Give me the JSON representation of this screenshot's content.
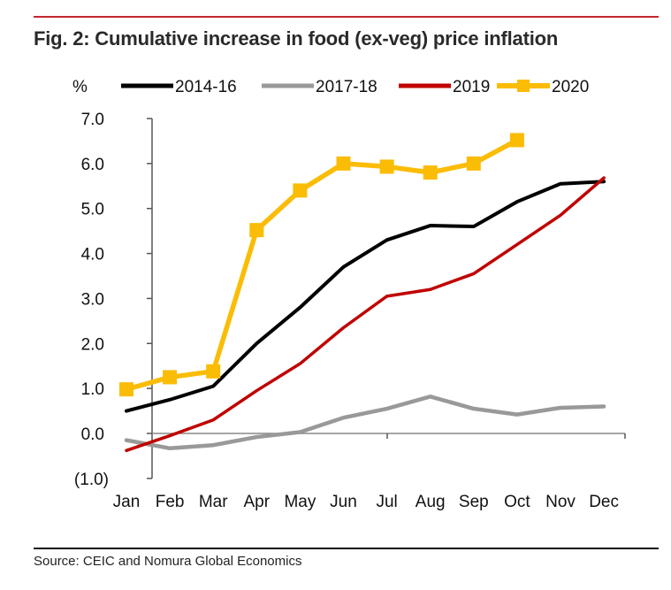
{
  "header": {
    "title": "Fig. 2: Cumulative increase in food (ex-veg) price inflation"
  },
  "footer": {
    "source": "Source: CEIC and Nomura Global Economics"
  },
  "chart_data": {
    "type": "line",
    "title": "Fig. 2: Cumulative increase in food (ex-veg) price inflation",
    "xlabel": "",
    "ylabel": "%",
    "categories": [
      "Jan",
      "Feb",
      "Mar",
      "Apr",
      "May",
      "Jun",
      "Jul",
      "Aug",
      "Sep",
      "Oct",
      "Nov",
      "Dec"
    ],
    "ylim": [
      -1.0,
      7.0
    ],
    "yticks": [
      -1.0,
      0.0,
      1.0,
      2.0,
      3.0,
      4.0,
      5.0,
      6.0,
      7.0
    ],
    "ytick_labels": [
      "(1.0)",
      "0.0",
      "1.0",
      "2.0",
      "3.0",
      "4.0",
      "5.0",
      "6.0",
      "7.0"
    ],
    "negative_label_color": "#c00000",
    "grid": false,
    "legend_position": "top",
    "series": [
      {
        "name": "2014-16",
        "color": "#000000",
        "marker": "none",
        "values": [
          0.5,
          0.75,
          1.05,
          2.0,
          2.8,
          3.7,
          4.3,
          4.62,
          4.6,
          5.15,
          5.55,
          5.6
        ]
      },
      {
        "name": "2017-18",
        "color": "#999999",
        "marker": "none",
        "values": [
          -0.15,
          -0.33,
          -0.26,
          -0.08,
          0.03,
          0.35,
          0.55,
          0.82,
          0.55,
          0.42,
          0.57,
          0.6
        ]
      },
      {
        "name": "2019",
        "color": "#c00000",
        "marker": "none",
        "values": [
          -0.38,
          -0.05,
          0.3,
          0.95,
          1.55,
          2.35,
          3.05,
          3.2,
          3.55,
          4.2,
          4.85,
          5.68
        ]
      },
      {
        "name": "2020",
        "color": "#fbbc05",
        "marker": "square",
        "values": [
          0.98,
          1.25,
          1.38,
          4.52,
          5.4,
          6.0,
          5.93,
          5.8,
          6.0,
          6.52,
          null,
          null
        ]
      }
    ]
  }
}
